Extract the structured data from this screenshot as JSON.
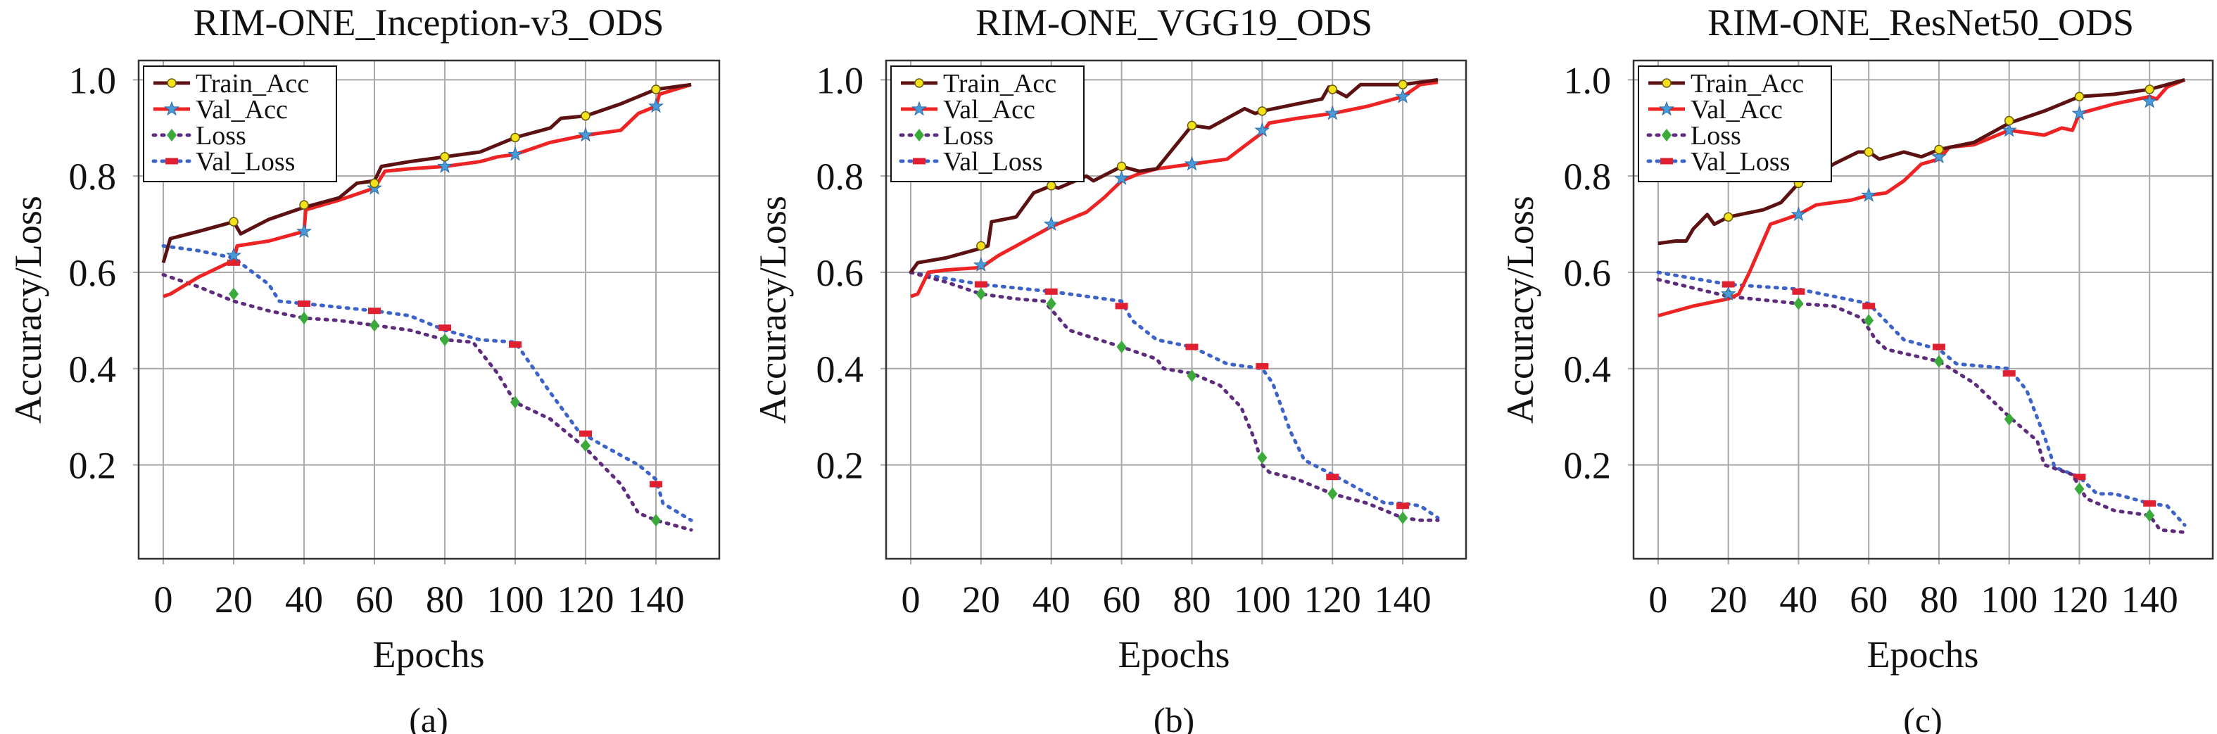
{
  "colors": {
    "train_acc": "#5c1212",
    "val_acc": "#ee2424",
    "loss": "#5e2c7c",
    "val_loss": "#3c64c8",
    "train_marker": "#f2e21a",
    "val_marker": "#4a9ad8",
    "loss_marker": "#3aaa3a",
    "val_loss_marker": "#e02030",
    "grid": "#a8a8a8"
  },
  "chart_data": [
    {
      "type": "line",
      "title": "RIM-ONE_Inception-v3_ODS",
      "caption": "(a)",
      "xlabel": "Epochs",
      "ylabel": "Accuracy/Loss",
      "xlim": [
        -7,
        158
      ],
      "ylim": [
        0.005,
        1.04
      ],
      "xticks": [
        0,
        20,
        40,
        60,
        80,
        100,
        120,
        140
      ],
      "yticks": [
        0.2,
        0.4,
        0.6,
        0.8,
        1.0
      ],
      "ytick_labels": [
        "0.2",
        "0.4",
        "0.6",
        "0.8",
        "1.0"
      ],
      "grid": true,
      "legend": "top-left",
      "marker_x": [
        20,
        40,
        60,
        80,
        100,
        120,
        140
      ],
      "series": [
        {
          "name": "Train_Acc",
          "style": "solid",
          "marker": "circle",
          "x": [
            0,
            2,
            10,
            20,
            22,
            30,
            40,
            50,
            55,
            60,
            62,
            70,
            80,
            90,
            100,
            110,
            113,
            120,
            130,
            140,
            150
          ],
          "y": [
            0.62,
            0.67,
            0.685,
            0.705,
            0.68,
            0.71,
            0.735,
            0.755,
            0.785,
            0.79,
            0.82,
            0.83,
            0.84,
            0.85,
            0.88,
            0.9,
            0.92,
            0.925,
            0.95,
            0.98,
            0.99
          ],
          "marker_values": [
            0.705,
            0.74,
            0.785,
            0.84,
            0.88,
            0.925,
            0.98
          ]
        },
        {
          "name": "Val_Acc",
          "style": "solid",
          "marker": "star",
          "x": [
            0,
            2,
            10,
            20,
            21,
            30,
            40,
            40.5,
            50,
            60,
            63,
            70,
            80,
            90,
            95,
            100,
            110,
            120,
            130,
            135,
            140,
            141,
            150
          ],
          "y": [
            0.55,
            0.555,
            0.59,
            0.625,
            0.655,
            0.665,
            0.685,
            0.73,
            0.75,
            0.775,
            0.81,
            0.815,
            0.82,
            0.83,
            0.84,
            0.845,
            0.87,
            0.885,
            0.895,
            0.93,
            0.945,
            0.97,
            0.99
          ],
          "marker_values": [
            0.635,
            0.685,
            0.775,
            0.82,
            0.845,
            0.885,
            0.945
          ]
        },
        {
          "name": "Loss",
          "style": "dotted",
          "marker": "diamond",
          "x": [
            0,
            10,
            20,
            30,
            40,
            50,
            60,
            70,
            80,
            88,
            95,
            100,
            110,
            120,
            130,
            135,
            140,
            150
          ],
          "y": [
            0.595,
            0.57,
            0.54,
            0.52,
            0.505,
            0.5,
            0.49,
            0.48,
            0.46,
            0.455,
            0.39,
            0.33,
            0.295,
            0.235,
            0.16,
            0.1,
            0.085,
            0.065
          ],
          "marker_values": [
            0.555,
            0.505,
            0.49,
            0.46,
            0.33,
            0.24,
            0.085
          ]
        },
        {
          "name": "Val_Loss",
          "style": "dotted",
          "marker": "rect",
          "x": [
            0,
            10,
            20,
            30,
            33,
            40,
            60,
            70,
            80,
            90,
            100,
            110,
            118,
            125,
            135,
            140,
            142,
            150
          ],
          "y": [
            0.655,
            0.645,
            0.63,
            0.575,
            0.54,
            0.535,
            0.52,
            0.51,
            0.48,
            0.46,
            0.455,
            0.35,
            0.27,
            0.24,
            0.2,
            0.17,
            0.12,
            0.085
          ],
          "marker_values": [
            0.62,
            0.535,
            0.52,
            0.485,
            0.45,
            0.265,
            0.16
          ]
        }
      ]
    },
    {
      "type": "line",
      "title": "RIM-ONE_VGG19_ODS",
      "caption": "(b)",
      "xlabel": "Epochs",
      "ylabel": "Accuracy/Loss",
      "xlim": [
        -7,
        158
      ],
      "ylim": [
        0.005,
        1.04
      ],
      "xticks": [
        0,
        20,
        40,
        60,
        80,
        100,
        120,
        140
      ],
      "yticks": [
        0.2,
        0.4,
        0.6,
        0.8,
        1.0
      ],
      "ytick_labels": [
        "0.2",
        "0.4",
        "0.6",
        "0.8",
        "1.0"
      ],
      "grid": true,
      "legend": "top-left",
      "marker_x": [
        20,
        40,
        60,
        80,
        100,
        120,
        140
      ],
      "series": [
        {
          "name": "Train_Acc",
          "style": "solid",
          "marker": "circle",
          "x": [
            0,
            2,
            10,
            20,
            22,
            23,
            30,
            35,
            40,
            42,
            50,
            52,
            60,
            65,
            70,
            75,
            80,
            85,
            95,
            98,
            100,
            110,
            117,
            119,
            124,
            128,
            140,
            150
          ],
          "y": [
            0.6,
            0.62,
            0.63,
            0.65,
            0.655,
            0.705,
            0.715,
            0.765,
            0.78,
            0.775,
            0.8,
            0.79,
            0.82,
            0.81,
            0.815,
            0.86,
            0.905,
            0.9,
            0.94,
            0.93,
            0.935,
            0.95,
            0.96,
            0.985,
            0.965,
            0.99,
            0.99,
            1.0
          ],
          "marker_values": [
            0.655,
            0.78,
            0.82,
            0.905,
            0.935,
            0.98,
            0.99
          ]
        },
        {
          "name": "Val_Acc",
          "style": "solid",
          "marker": "star",
          "x": [
            0,
            2,
            5,
            10,
            20,
            25,
            30,
            40,
            50,
            55,
            60,
            65,
            70,
            80,
            90,
            100,
            102,
            110,
            120,
            130,
            140,
            145,
            150
          ],
          "y": [
            0.55,
            0.555,
            0.6,
            0.605,
            0.61,
            0.635,
            0.655,
            0.695,
            0.725,
            0.755,
            0.79,
            0.805,
            0.815,
            0.825,
            0.835,
            0.89,
            0.91,
            0.92,
            0.93,
            0.945,
            0.965,
            0.99,
            0.995
          ],
          "marker_values": [
            0.615,
            0.7,
            0.795,
            0.825,
            0.895,
            0.93,
            0.965
          ]
        },
        {
          "name": "Loss",
          "style": "dotted",
          "marker": "diamond",
          "x": [
            0,
            10,
            20,
            30,
            38,
            45,
            60,
            70,
            72,
            80,
            88,
            94,
            98,
            100,
            102,
            110,
            120,
            130,
            140,
            145,
            150
          ],
          "y": [
            0.6,
            0.58,
            0.555,
            0.545,
            0.54,
            0.48,
            0.445,
            0.42,
            0.4,
            0.39,
            0.365,
            0.32,
            0.25,
            0.2,
            0.185,
            0.17,
            0.14,
            0.12,
            0.09,
            0.085,
            0.085
          ],
          "marker_values": [
            0.555,
            0.535,
            0.445,
            0.385,
            0.215,
            0.14,
            0.09
          ]
        },
        {
          "name": "Val_Loss",
          "style": "dotted",
          "marker": "rect",
          "x": [
            0,
            20,
            40,
            60,
            63,
            70,
            80,
            90,
            100,
            103,
            108,
            112,
            120,
            130,
            135,
            140,
            145,
            150
          ],
          "y": [
            0.6,
            0.575,
            0.56,
            0.54,
            0.5,
            0.46,
            0.445,
            0.41,
            0.4,
            0.37,
            0.27,
            0.21,
            0.18,
            0.14,
            0.12,
            0.12,
            0.115,
            0.09
          ],
          "marker_values": [
            0.575,
            0.56,
            0.53,
            0.445,
            0.405,
            0.175,
            0.115
          ]
        }
      ]
    },
    {
      "type": "line",
      "title": "RIM-ONE_ResNet50_ODS",
      "caption": "(c)",
      "xlabel": "Epochs",
      "ylabel": "Accuracy/Loss",
      "xlim": [
        -7,
        158
      ],
      "ylim": [
        0.005,
        1.04
      ],
      "xticks": [
        0,
        20,
        40,
        60,
        80,
        100,
        120,
        140
      ],
      "yticks": [
        0.2,
        0.4,
        0.6,
        0.8,
        1.0
      ],
      "ytick_labels": [
        "0.2",
        "0.4",
        "0.6",
        "0.8",
        "1.0"
      ],
      "grid": true,
      "legend": "top-left",
      "marker_x": [
        20,
        40,
        60,
        80,
        100,
        120,
        140
      ],
      "series": [
        {
          "name": "Train_Acc",
          "style": "solid",
          "marker": "circle",
          "x": [
            0,
            5,
            8,
            10,
            14,
            16,
            20,
            30,
            35,
            40,
            45,
            50,
            57,
            60,
            63,
            70,
            75,
            80,
            90,
            100,
            110,
            120,
            130,
            140,
            150
          ],
          "y": [
            0.66,
            0.665,
            0.665,
            0.69,
            0.72,
            0.7,
            0.715,
            0.73,
            0.745,
            0.785,
            0.8,
            0.825,
            0.85,
            0.85,
            0.835,
            0.85,
            0.84,
            0.855,
            0.87,
            0.91,
            0.935,
            0.965,
            0.97,
            0.98,
            1.0
          ],
          "marker_values": [
            0.715,
            0.785,
            0.85,
            0.855,
            0.915,
            0.965,
            0.98
          ]
        },
        {
          "name": "Val_Acc",
          "style": "solid",
          "marker": "star",
          "x": [
            0,
            10,
            20,
            23,
            26,
            32,
            40,
            45,
            55,
            60,
            65,
            70,
            75,
            80,
            83,
            90,
            100,
            110,
            115,
            118,
            120,
            130,
            140,
            142,
            145,
            150
          ],
          "y": [
            0.51,
            0.53,
            0.545,
            0.555,
            0.6,
            0.7,
            0.72,
            0.74,
            0.75,
            0.76,
            0.765,
            0.79,
            0.825,
            0.835,
            0.86,
            0.865,
            0.895,
            0.885,
            0.9,
            0.895,
            0.93,
            0.95,
            0.965,
            0.96,
            0.985,
            1.0
          ],
          "marker_values": [
            0.555,
            0.72,
            0.76,
            0.84,
            0.895,
            0.93,
            0.955
          ]
        },
        {
          "name": "Loss",
          "style": "dotted",
          "marker": "diamond",
          "x": [
            0,
            20,
            40,
            50,
            58,
            62,
            65,
            80,
            90,
            100,
            108,
            110,
            118,
            122,
            130,
            140,
            143,
            150
          ],
          "y": [
            0.585,
            0.55,
            0.535,
            0.53,
            0.505,
            0.46,
            0.44,
            0.415,
            0.37,
            0.3,
            0.25,
            0.2,
            0.18,
            0.13,
            0.105,
            0.095,
            0.065,
            0.06
          ],
          "marker_values": [
            0.555,
            0.535,
            0.5,
            0.415,
            0.295,
            0.15,
            0.095
          ]
        },
        {
          "name": "Val_Loss",
          "style": "dotted",
          "marker": "rect",
          "x": [
            0,
            20,
            40,
            60,
            70,
            80,
            85,
            100,
            105,
            110,
            113,
            120,
            125,
            130,
            140,
            145,
            150
          ],
          "y": [
            0.6,
            0.575,
            0.565,
            0.535,
            0.46,
            0.44,
            0.41,
            0.4,
            0.355,
            0.26,
            0.195,
            0.175,
            0.14,
            0.14,
            0.12,
            0.115,
            0.075
          ],
          "marker_values": [
            0.575,
            0.56,
            0.53,
            0.445,
            0.39,
            0.175,
            0.12
          ]
        }
      ]
    }
  ]
}
